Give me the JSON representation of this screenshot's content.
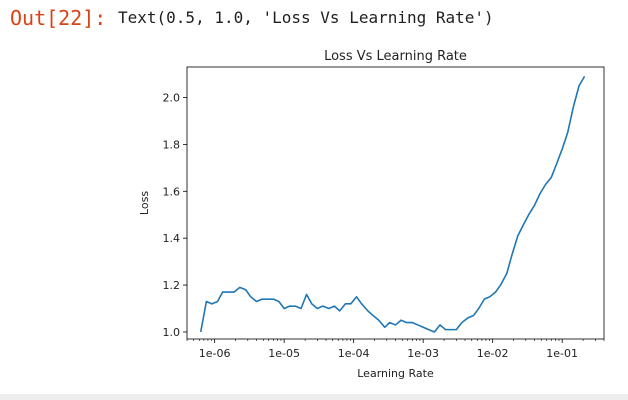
{
  "cell": {
    "prompt": "Out[22]:",
    "result_text": "Text(0.5, 1.0, 'Loss Vs Learning Rate')"
  },
  "chart_data": {
    "type": "line",
    "title": "Loss Vs Learning Rate",
    "xlabel": "Learning Rate",
    "ylabel": "Loss",
    "xscale": "log",
    "xlim": [
      4e-07,
      0.4
    ],
    "ylim": [
      0.97,
      2.13
    ],
    "x_ticks": [
      {
        "value": 1e-06,
        "label": "1e-06"
      },
      {
        "value": 1e-05,
        "label": "1e-05"
      },
      {
        "value": 0.0001,
        "label": "1e-04"
      },
      {
        "value": 0.001,
        "label": "1e-03"
      },
      {
        "value": 0.01,
        "label": "1e-02"
      },
      {
        "value": 0.1,
        "label": "1e-01"
      }
    ],
    "y_ticks": [
      {
        "value": 1.0,
        "label": "1.0"
      },
      {
        "value": 1.2,
        "label": "1.2"
      },
      {
        "value": 1.4,
        "label": "1.4"
      },
      {
        "value": 1.6,
        "label": "1.6"
      },
      {
        "value": 1.8,
        "label": "1.8"
      },
      {
        "value": 2.0,
        "label": "2.0"
      }
    ],
    "grid": false,
    "line_color": "#1f77b4",
    "series": [
      {
        "x": [
          6.3e-07,
          7.6e-07,
          9.1e-07,
          1.1e-06,
          1.3e-06,
          1.6e-06,
          1.9e-06,
          2.3e-06,
          2.8e-06,
          3.3e-06,
          4e-06,
          4.8e-06,
          5.8e-06,
          7e-06,
          8.4e-06,
          1e-05,
          1.2e-05,
          1.45e-05,
          1.75e-05,
          2.1e-05,
          2.5e-05,
          3e-05,
          3.6e-05,
          4.4e-05,
          5.3e-05,
          6.3e-05,
          7.6e-05,
          9.1e-05,
          0.00011,
          0.00013,
          0.00016,
          0.00019,
          0.00023,
          0.00028,
          0.00033,
          0.0004,
          0.00048,
          0.00058,
          0.0007,
          0.00084,
          0.001,
          0.0012,
          0.00145,
          0.00175,
          0.0021,
          0.0025,
          0.003,
          0.0036,
          0.0044,
          0.0053,
          0.0063,
          0.0076,
          0.0091,
          0.011,
          0.013,
          0.016,
          0.019,
          0.023,
          0.028,
          0.033,
          0.04,
          0.048,
          0.058,
          0.07,
          0.084,
          0.1,
          0.12,
          0.145,
          0.175,
          0.21
        ],
        "y": [
          1.0,
          1.13,
          1.12,
          1.13,
          1.17,
          1.17,
          1.17,
          1.19,
          1.18,
          1.15,
          1.13,
          1.14,
          1.14,
          1.14,
          1.13,
          1.1,
          1.11,
          1.11,
          1.1,
          1.16,
          1.12,
          1.1,
          1.11,
          1.1,
          1.11,
          1.09,
          1.12,
          1.12,
          1.15,
          1.12,
          1.09,
          1.07,
          1.05,
          1.02,
          1.04,
          1.03,
          1.05,
          1.04,
          1.04,
          1.03,
          1.02,
          1.01,
          1.0,
          1.03,
          1.01,
          1.01,
          1.01,
          1.04,
          1.06,
          1.07,
          1.1,
          1.14,
          1.15,
          1.17,
          1.2,
          1.25,
          1.33,
          1.41,
          1.46,
          1.5,
          1.54,
          1.59,
          1.63,
          1.66,
          1.72,
          1.78,
          1.85,
          1.96,
          2.05,
          2.09
        ]
      }
    ]
  }
}
